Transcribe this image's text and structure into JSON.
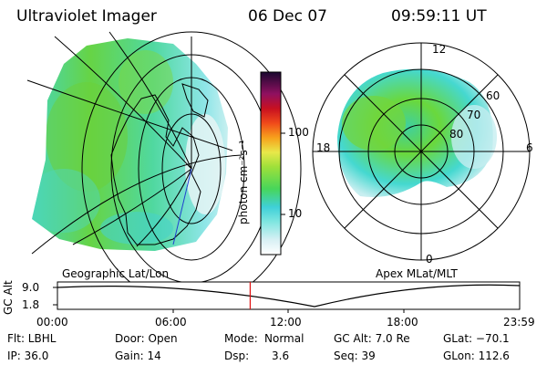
{
  "header": {
    "instrument": "Ultraviolet Imager",
    "date": "06 Dec 07",
    "time": "09:59:11 UT"
  },
  "colorbar": {
    "unit_label": "photon cm⁻²s⁻¹",
    "ticks": [
      "100",
      "10"
    ],
    "scale": "log"
  },
  "geo_map": {
    "label": "Geographic Lat/Lon"
  },
  "polar_plot": {
    "label": "Apex MLat/MLT",
    "mlt_labels": {
      "top": "12",
      "left": "18",
      "right": "6",
      "bottom": "0"
    },
    "lat_labels": [
      "60",
      "70",
      "80"
    ]
  },
  "altitude_track": {
    "axis_label": "GC Alt",
    "y_ticks": [
      "9.0",
      "1.8"
    ],
    "time_ticks": [
      "00:00",
      "06:00",
      "12:00",
      "18:00",
      "23:59"
    ],
    "current_time_fraction": 0.417
  },
  "info": {
    "filter": "Flt: LBHL",
    "ip": "IP: 36.0",
    "door": "Door: Open",
    "gain": "Gain: 14",
    "mode_label": "Mode:",
    "mode_value": "Normal",
    "dsp_label": "Dsp:",
    "dsp_value": "3.6",
    "gc_alt": "GC Alt: 7.0 Re",
    "seq": "Seq: 39",
    "glat": "GLat: −70.1",
    "glon": "GLon: 112.6"
  },
  "colors": {
    "aurora_green": "#5fd23c",
    "aurora_cyan": "#3fe0d8",
    "aurora_light": "#bfeef0",
    "marker": "#e01010"
  }
}
